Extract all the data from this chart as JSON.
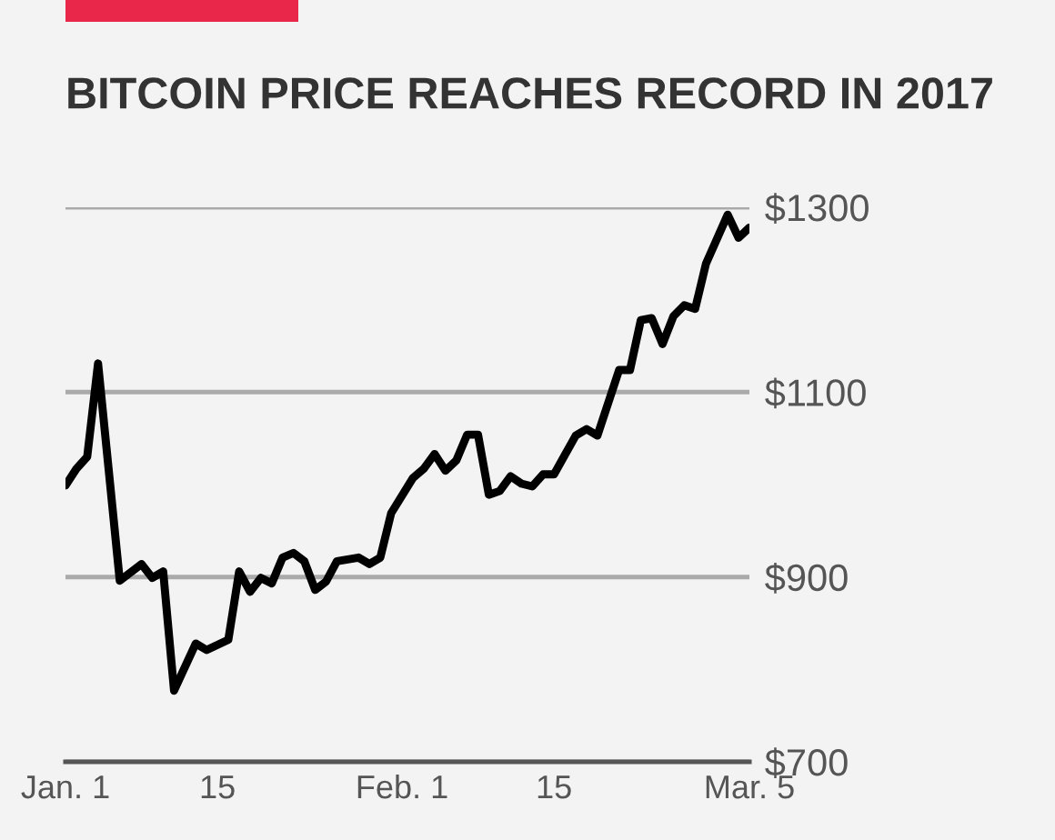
{
  "chart_data": {
    "type": "line",
    "title": "BITCOIN PRICE REACHES RECORD IN 2017",
    "x": [
      "2017-01-01",
      "2017-01-02",
      "2017-01-03",
      "2017-01-04",
      "2017-01-06",
      "2017-01-08",
      "2017-01-09",
      "2017-01-10",
      "2017-01-11",
      "2017-01-13",
      "2017-01-14",
      "2017-01-16",
      "2017-01-17",
      "2017-01-18",
      "2017-01-19",
      "2017-01-20",
      "2017-01-21",
      "2017-01-22",
      "2017-01-23",
      "2017-01-24",
      "2017-01-25",
      "2017-01-26",
      "2017-01-28",
      "2017-01-29",
      "2017-01-30",
      "2017-01-31",
      "2017-02-02",
      "2017-02-03",
      "2017-02-04",
      "2017-02-05",
      "2017-02-06",
      "2017-02-07",
      "2017-02-08",
      "2017-02-09",
      "2017-02-10",
      "2017-02-11",
      "2017-02-12",
      "2017-02-13",
      "2017-02-14",
      "2017-02-15",
      "2017-02-17",
      "2017-02-18",
      "2017-02-19",
      "2017-02-21",
      "2017-02-22",
      "2017-02-23",
      "2017-02-24",
      "2017-02-25",
      "2017-02-26",
      "2017-02-27",
      "2017-02-28",
      "2017-03-01",
      "2017-03-03",
      "2017-03-04",
      "2017-03-05"
    ],
    "series": [
      {
        "color": "#000000",
        "values": [
          999,
          1017,
          1030,
          1131,
          896,
          914,
          899,
          906,
          777,
          828,
          821,
          832,
          906,
          884,
          899,
          893,
          921,
          926,
          917,
          886,
          895,
          917,
          921,
          914,
          921,
          969,
          1007,
          1017,
          1033,
          1015,
          1026,
          1054,
          1054,
          989,
          993,
          1009,
          1001,
          998,
          1011,
          1011,
          1053,
          1060,
          1053,
          1124,
          1124,
          1178,
          1180,
          1152,
          1182,
          1194,
          1190,
          1239,
          1292,
          1267,
          1278
        ]
      }
    ],
    "xlim": [
      "2017-01-01",
      "2017-03-05"
    ],
    "xticks": [
      {
        "value": "2017-01-01",
        "label": "Jan. 1"
      },
      {
        "value": "2017-01-15",
        "label": "15"
      },
      {
        "value": "2017-02-01",
        "label": "Feb. 1"
      },
      {
        "value": "2017-02-15",
        "label": "15"
      },
      {
        "value": "2017-03-05",
        "label": "Mar. 5"
      }
    ],
    "ylim": [
      700,
      1300
    ],
    "yticks": [
      {
        "value": 700,
        "label": "$700"
      },
      {
        "value": 900,
        "label": "$900"
      },
      {
        "value": 1100,
        "label": "$1100"
      },
      {
        "value": 1300,
        "label": "$1300"
      }
    ],
    "grid": "y",
    "legend": false,
    "marker": "none",
    "line_style": "solid"
  }
}
